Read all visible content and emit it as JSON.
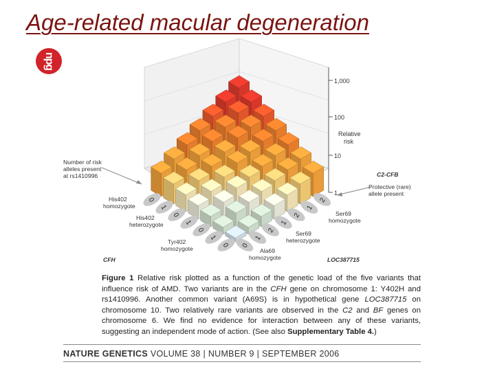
{
  "slide": {
    "title": "Age-related macular degeneration",
    "logo_text": "npg"
  },
  "figure": {
    "z_ticks": [
      "1,000",
      "100",
      "10",
      "1"
    ],
    "z_label_line1": "Relative",
    "z_label_line2": "risk",
    "rs_label_line1": "Number of risk",
    "rs_label_line2": "alleles present",
    "rs_label_line3": "at rs1410996",
    "cfh_ticks": [
      "2",
      "1",
      "2",
      "1",
      "2",
      "1",
      "0"
    ],
    "c2cfb_ticks": [
      "0",
      "1",
      "0",
      "1",
      "0",
      "1",
      "0"
    ],
    "his402_hom_line1": "His402",
    "his402_hom_line2": "homozygote",
    "his402_het_line1": "His402",
    "his402_het_line2": "heterozygote",
    "tyr402_line1": "Tyr402",
    "tyr402_line2": "homozygote",
    "ala69_line1": "Ala69",
    "ala69_line2": "homozygote",
    "ser69_het_line1": "Ser69",
    "ser69_het_line2": "heterozygote",
    "ser69_hom_line1": "Ser69",
    "ser69_hom_line2": "homozygote",
    "c2cfb_label": "C2-CFB",
    "protective_line1": "Protective (rare)",
    "protective_line2": "allele present",
    "cfh_gene": "CFH",
    "loc_gene": "LOC387715"
  },
  "caption": {
    "fig_label": "Figure 1",
    "s1": "Relative risk plotted as a function of the genetic load of the five variants that influence risk of AMD. Two variants are in the ",
    "g1": "CFH",
    "s2": " gene on chromosome 1: Y402H and rs1410996. Another common variant (A69S) is in hypothetical gene ",
    "g2": "LOC387715",
    "s3": " on chromosome 10. Two relatively rare variants are observed in the ",
    "g3": "C2",
    "s4": " and ",
    "g4": "BF",
    "s5": " genes on chromosome 6. We find no evidence for interaction between any of these variants, suggesting an independent mode of action. (See also ",
    "supp": "Supplementary Table 4.",
    "s6": ")"
  },
  "footer": {
    "journal": "NATURE GENETICS",
    "volume": "VOLUME 38",
    "sep1": "|",
    "number": "NUMBER 9",
    "sep2": "|",
    "date": "SEPTEMBER 2006"
  },
  "palette": {
    "red": "#e23a2c",
    "red_orange": "#ec5a2c",
    "orange": "#f0822e",
    "amber": "#f5a43c",
    "yellow": "#f7cf78",
    "pale_yellow": "#f6e8b8",
    "cream": "#eeeede",
    "pale_green": "#d4e3d2",
    "pale_blue": "#d4e2ea",
    "white": "#f7f7f7"
  }
}
